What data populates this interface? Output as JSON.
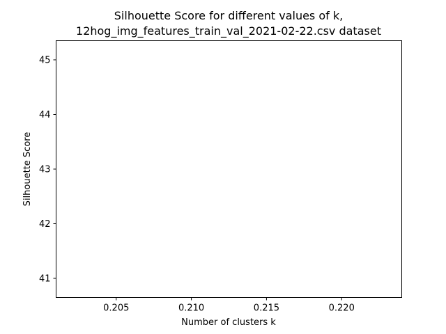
{
  "chart_data": {
    "type": "line",
    "title_line1": "Silhouette Score for different values of k,",
    "title_line2": "12hog_img_features_train_val_2021-02-22.csv dataset",
    "xlabel": "Number of clusters k",
    "ylabel": "Silhouette Score",
    "xlim": [
      0.201,
      0.224
    ],
    "ylim": [
      40.65,
      45.35
    ],
    "xticks": [
      0.205,
      0.21,
      0.215,
      0.22
    ],
    "xtick_labels": [
      "0.205",
      "0.210",
      "0.215",
      "0.220"
    ],
    "yticks": [
      41,
      42,
      43,
      44,
      45
    ],
    "ytick_labels": [
      "41",
      "42",
      "43",
      "44",
      "45"
    ],
    "series": [],
    "grid": false
  }
}
